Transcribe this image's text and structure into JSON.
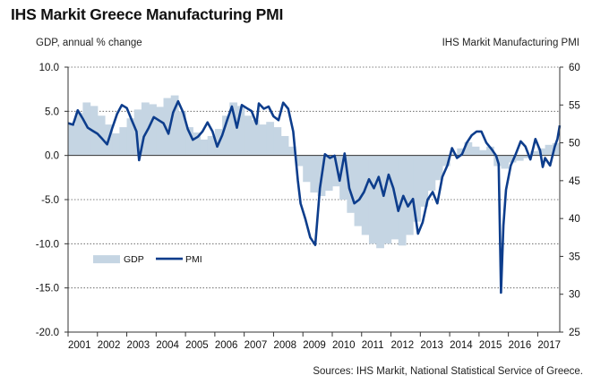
{
  "chart_data": {
    "type": "area",
    "title": "IHS Markit Greece Manufacturing PMI",
    "ylabel_left": "GDP, annual % change",
    "ylabel_right": "IHS Markit Manufacturing PMI",
    "ylim_left": [
      -20,
      10
    ],
    "ylim_right": [
      25,
      60
    ],
    "yticks_left": [
      "10.0",
      "5.0",
      "0.0",
      "-5.0",
      "-10.0",
      "-15.0",
      "-20.0"
    ],
    "yticks_right": [
      "60",
      "55",
      "50",
      "45",
      "40",
      "35",
      "30",
      "25"
    ],
    "xticks": [
      "2001",
      "2002",
      "2003",
      "2004",
      "2005",
      "2006",
      "2007",
      "2008",
      "2009",
      "2010",
      "2011",
      "2012",
      "2013",
      "2014",
      "2015",
      "2016",
      "2017"
    ],
    "x_range": [
      2001,
      2017.75
    ],
    "legend": {
      "position": "lower-left",
      "items": [
        "GDP",
        "PMI"
      ]
    },
    "grid": "horizontal dotted",
    "colors": {
      "gdp": "#c5d5e3",
      "pmi": "#0d3d8c"
    },
    "source": "Sources: IHS Markit, National Statistical Service of Greece.",
    "series": [
      {
        "name": "GDP",
        "kind": "bars",
        "axis": "left",
        "points": [
          [
            2001.0,
            3.5
          ],
          [
            2001.25,
            4.8
          ],
          [
            2001.5,
            6.0
          ],
          [
            2001.75,
            5.6
          ],
          [
            2002.0,
            4.5
          ],
          [
            2002.25,
            3.5
          ],
          [
            2002.5,
            2.5
          ],
          [
            2002.75,
            3.2
          ],
          [
            2003.0,
            4.2
          ],
          [
            2003.25,
            5.2
          ],
          [
            2003.5,
            6.0
          ],
          [
            2003.75,
            5.8
          ],
          [
            2004.0,
            5.5
          ],
          [
            2004.25,
            6.5
          ],
          [
            2004.5,
            6.8
          ],
          [
            2004.75,
            5.0
          ],
          [
            2005.0,
            3.2
          ],
          [
            2005.25,
            2.6
          ],
          [
            2005.5,
            1.8
          ],
          [
            2005.75,
            2.2
          ],
          [
            2006.0,
            3.0
          ],
          [
            2006.25,
            4.5
          ],
          [
            2006.5,
            6.0
          ],
          [
            2006.75,
            5.6
          ],
          [
            2007.0,
            4.5
          ],
          [
            2007.25,
            4.0
          ],
          [
            2007.5,
            3.5
          ],
          [
            2007.75,
            3.8
          ],
          [
            2008.0,
            3.2
          ],
          [
            2008.25,
            2.2
          ],
          [
            2008.5,
            1.0
          ],
          [
            2008.75,
            -1.2
          ],
          [
            2009.0,
            -3.0
          ],
          [
            2009.25,
            -4.2
          ],
          [
            2009.5,
            -4.6
          ],
          [
            2009.75,
            -4.0
          ],
          [
            2010.0,
            -3.5
          ],
          [
            2010.25,
            -5.0
          ],
          [
            2010.5,
            -6.5
          ],
          [
            2010.75,
            -8.0
          ],
          [
            2011.0,
            -9.0
          ],
          [
            2011.25,
            -10.0
          ],
          [
            2011.5,
            -10.5
          ],
          [
            2011.75,
            -10.0
          ],
          [
            2012.0,
            -9.5
          ],
          [
            2012.25,
            -10.2
          ],
          [
            2012.5,
            -9.0
          ],
          [
            2012.75,
            -7.5
          ],
          [
            2013.0,
            -5.8
          ],
          [
            2013.25,
            -4.0
          ],
          [
            2013.5,
            -2.8
          ],
          [
            2013.75,
            -1.2
          ],
          [
            2014.0,
            0.2
          ],
          [
            2014.25,
            0.8
          ],
          [
            2014.5,
            1.5
          ],
          [
            2014.75,
            1.0
          ],
          [
            2015.0,
            0.6
          ],
          [
            2015.25,
            1.0
          ],
          [
            2015.5,
            -1.2
          ],
          [
            2015.75,
            -1.5
          ],
          [
            2016.0,
            -0.8
          ],
          [
            2016.25,
            -0.6
          ],
          [
            2016.5,
            -0.3
          ],
          [
            2016.75,
            0.5
          ],
          [
            2017.0,
            0.8
          ],
          [
            2017.25,
            1.2
          ],
          [
            2017.5,
            1.4
          ]
        ]
      },
      {
        "name": "PMI",
        "kind": "line",
        "axis": "right",
        "points": [
          [
            2001.0,
            52.6
          ],
          [
            2001.17,
            52.4
          ],
          [
            2001.33,
            54.3
          ],
          [
            2001.5,
            53.2
          ],
          [
            2001.67,
            52.0
          ],
          [
            2001.83,
            51.6
          ],
          [
            2002.0,
            51.2
          ],
          [
            2002.17,
            50.5
          ],
          [
            2002.33,
            49.8
          ],
          [
            2002.5,
            51.9
          ],
          [
            2002.67,
            53.8
          ],
          [
            2002.83,
            55.0
          ],
          [
            2003.0,
            54.6
          ],
          [
            2003.17,
            53.0
          ],
          [
            2003.33,
            51.5
          ],
          [
            2003.42,
            47.7
          ],
          [
            2003.58,
            50.8
          ],
          [
            2003.75,
            52.0
          ],
          [
            2003.92,
            53.4
          ],
          [
            2004.08,
            53.0
          ],
          [
            2004.25,
            52.6
          ],
          [
            2004.42,
            51.2
          ],
          [
            2004.58,
            54.0
          ],
          [
            2004.75,
            55.5
          ],
          [
            2004.92,
            54.0
          ],
          [
            2005.08,
            51.8
          ],
          [
            2005.25,
            50.4
          ],
          [
            2005.42,
            50.8
          ],
          [
            2005.58,
            51.5
          ],
          [
            2005.75,
            52.7
          ],
          [
            2005.92,
            51.5
          ],
          [
            2006.08,
            49.5
          ],
          [
            2006.25,
            51.0
          ],
          [
            2006.42,
            53.0
          ],
          [
            2006.58,
            54.8
          ],
          [
            2006.75,
            52.0
          ],
          [
            2006.92,
            55.0
          ],
          [
            2007.08,
            54.6
          ],
          [
            2007.25,
            54.2
          ],
          [
            2007.42,
            52.5
          ],
          [
            2007.5,
            55.2
          ],
          [
            2007.67,
            54.5
          ],
          [
            2007.83,
            54.8
          ],
          [
            2008.0,
            53.5
          ],
          [
            2008.17,
            53.0
          ],
          [
            2008.33,
            55.3
          ],
          [
            2008.5,
            54.5
          ],
          [
            2008.67,
            51.5
          ],
          [
            2008.83,
            45.0
          ],
          [
            2008.92,
            42.0
          ],
          [
            2009.08,
            40.0
          ],
          [
            2009.25,
            37.5
          ],
          [
            2009.42,
            36.5
          ],
          [
            2009.58,
            44.0
          ],
          [
            2009.75,
            48.5
          ],
          [
            2009.92,
            48.0
          ],
          [
            2010.08,
            48.3
          ],
          [
            2010.25,
            45.0
          ],
          [
            2010.42,
            48.6
          ],
          [
            2010.58,
            44.0
          ],
          [
            2010.75,
            42.0
          ],
          [
            2010.92,
            42.5
          ],
          [
            2011.08,
            43.5
          ],
          [
            2011.25,
            45.2
          ],
          [
            2011.42,
            44.0
          ],
          [
            2011.58,
            45.5
          ],
          [
            2011.75,
            43.0
          ],
          [
            2011.92,
            45.8
          ],
          [
            2012.08,
            44.0
          ],
          [
            2012.25,
            41.0
          ],
          [
            2012.42,
            43.0
          ],
          [
            2012.58,
            41.6
          ],
          [
            2012.75,
            42.6
          ],
          [
            2012.92,
            38.0
          ],
          [
            2013.08,
            39.5
          ],
          [
            2013.25,
            42.5
          ],
          [
            2013.42,
            43.5
          ],
          [
            2013.58,
            42.0
          ],
          [
            2013.75,
            45.5
          ],
          [
            2013.92,
            47.0
          ],
          [
            2014.08,
            49.3
          ],
          [
            2014.25,
            48.0
          ],
          [
            2014.42,
            48.5
          ],
          [
            2014.58,
            50.0
          ],
          [
            2014.75,
            51.0
          ],
          [
            2014.92,
            51.5
          ],
          [
            2015.08,
            51.5
          ],
          [
            2015.25,
            50.0
          ],
          [
            2015.42,
            49.2
          ],
          [
            2015.58,
            48.3
          ],
          [
            2015.67,
            47.2
          ],
          [
            2015.75,
            30.2
          ],
          [
            2015.83,
            39.1
          ],
          [
            2015.92,
            43.8
          ],
          [
            2016.08,
            47.0
          ],
          [
            2016.25,
            48.5
          ],
          [
            2016.42,
            50.2
          ],
          [
            2016.58,
            49.5
          ],
          [
            2016.75,
            47.8
          ],
          [
            2016.92,
            50.5
          ],
          [
            2017.08,
            49.0
          ],
          [
            2017.17,
            46.8
          ],
          [
            2017.25,
            48.0
          ],
          [
            2017.42,
            47.0
          ],
          [
            2017.58,
            49.5
          ],
          [
            2017.67,
            50.5
          ],
          [
            2017.75,
            52.3
          ]
        ]
      }
    ]
  }
}
